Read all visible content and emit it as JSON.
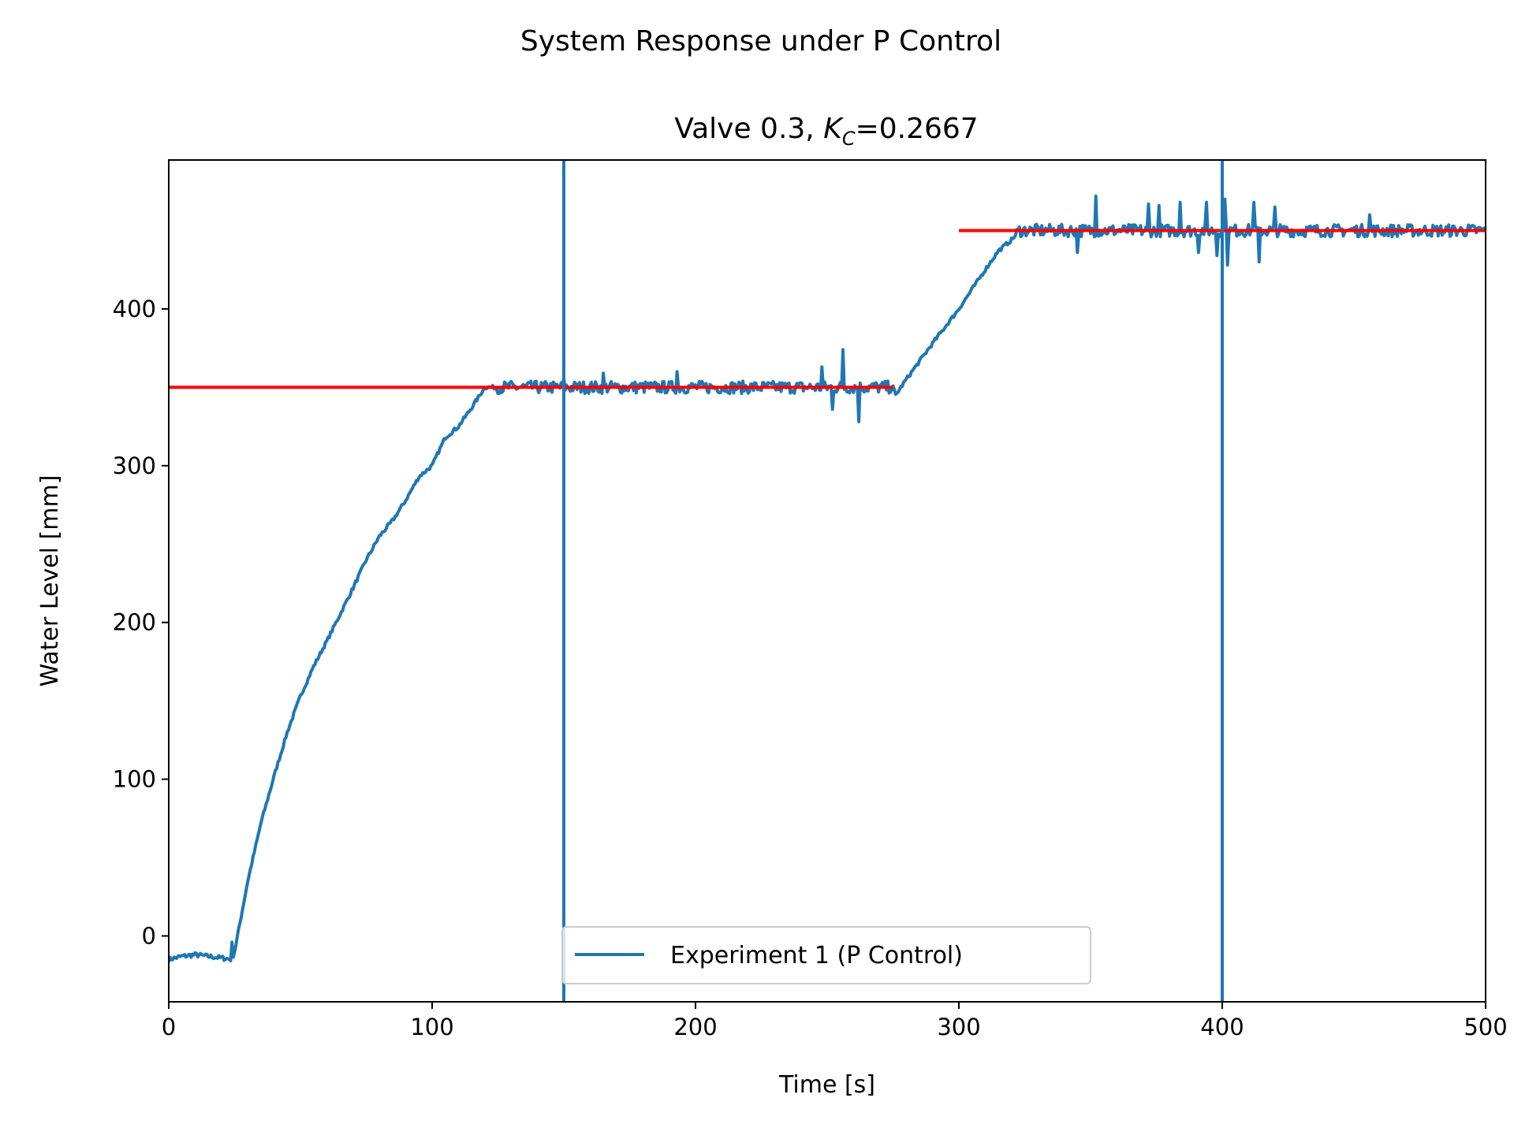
{
  "chart_data": {
    "type": "line",
    "suptitle": "System Response under P Control",
    "title_prefix": "Valve 0.3, ",
    "title_symbol": "K",
    "title_subscript": "C",
    "title_suffix": "=0.2667",
    "xlabel": "Time [s]",
    "ylabel": "Water Level [mm]",
    "xlim": [
      0,
      500
    ],
    "ylim": [
      -42,
      495
    ],
    "xticks": [
      "0",
      "100",
      "200",
      "300",
      "400",
      "500"
    ],
    "yticks": [
      "0",
      "100",
      "200",
      "300",
      "400"
    ],
    "grid": false,
    "legend": {
      "position": "lower-center",
      "entries": [
        "Experiment 1 (P Control)"
      ]
    },
    "series": [
      {
        "name": "Experiment 1 (P Control)",
        "color": "#1f77b4",
        "x": [
          0,
          5,
          10,
          15,
          20,
          24,
          25,
          30,
          35,
          40,
          45,
          50,
          55,
          60,
          65,
          70,
          75,
          80,
          85,
          90,
          95,
          100,
          105,
          110,
          115,
          120,
          124,
          130,
          140,
          150,
          160,
          170,
          180,
          190,
          200,
          210,
          220,
          230,
          240,
          250,
          260,
          270,
          275,
          276,
          280,
          290,
          300,
          310,
          315,
          320,
          323,
          330,
          340,
          350,
          360,
          370,
          380,
          390,
          400,
          410,
          420,
          430,
          440,
          450,
          460,
          470,
          480,
          490,
          500
        ],
        "y": [
          -15,
          -13,
          -12,
          -13,
          -14,
          -15,
          -10,
          35,
          72,
          102,
          130,
          153,
          172,
          188,
          205,
          222,
          240,
          255,
          265,
          278,
          293,
          300,
          318,
          325,
          337,
          350,
          350,
          350,
          350,
          350,
          350,
          350,
          350,
          350,
          350,
          350,
          350,
          350,
          350,
          350,
          350,
          350,
          350,
          345,
          355,
          378,
          400,
          425,
          437,
          444,
          450,
          450,
          450,
          450,
          450,
          450,
          450,
          450,
          450,
          450,
          450,
          450,
          450,
          450,
          450,
          450,
          450,
          450,
          450
        ],
        "spikes": [
          {
            "x": 24,
            "y": -4
          },
          {
            "x": 150,
            "y": 356
          },
          {
            "x": 165,
            "y": 359
          },
          {
            "x": 193,
            "y": 360
          },
          {
            "x": 248,
            "y": 363
          },
          {
            "x": 252,
            "y": 336
          },
          {
            "x": 256,
            "y": 374
          },
          {
            "x": 262,
            "y": 328
          },
          {
            "x": 345,
            "y": 436
          },
          {
            "x": 352,
            "y": 472
          },
          {
            "x": 372,
            "y": 467
          },
          {
            "x": 376,
            "y": 466
          },
          {
            "x": 384,
            "y": 468
          },
          {
            "x": 391,
            "y": 436
          },
          {
            "x": 394,
            "y": 468
          },
          {
            "x": 398,
            "y": 434
          },
          {
            "x": 401,
            "y": 470
          },
          {
            "x": 402,
            "y": 428
          },
          {
            "x": 412,
            "y": 468
          },
          {
            "x": 414,
            "y": 430
          },
          {
            "x": 420,
            "y": 465
          },
          {
            "x": 456,
            "y": 460
          }
        ]
      }
    ],
    "reference_lines": [
      {
        "kind": "setpoint",
        "color": "#ff0000",
        "x": [
          0,
          275
        ],
        "y": 350
      },
      {
        "kind": "setpoint",
        "color": "#ff0000",
        "x": [
          300,
          500
        ],
        "y": 450
      }
    ],
    "vertical_lines": [
      {
        "color": "#1f77b4",
        "x": 150
      },
      {
        "color": "#1f77b4",
        "x": 400
      }
    ]
  }
}
